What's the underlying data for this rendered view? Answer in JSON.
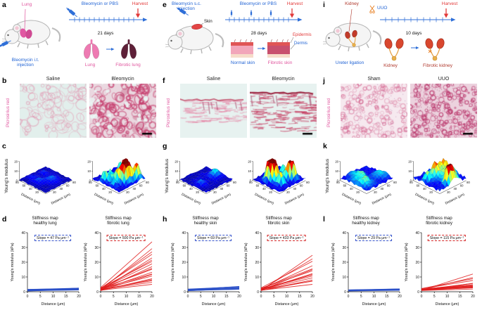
{
  "colors": {
    "accent_blue": "#1f62d4",
    "accent_red": "#e23a3a",
    "accent_magenta": "#e0559e",
    "accent_darkred": "#b03a2e",
    "healthy_line": "#2b50c8",
    "fibrotic_line": "#e01c1c"
  },
  "panels": {
    "a": {
      "letter": "a",
      "organ_pointer": "Lung",
      "injection": "Bleomycin i.t. injection",
      "treatment": "Bleomycin or PBS",
      "duration": "21 days",
      "harvest": "Harvest",
      "organ_before": "Lung",
      "organ_after": "Fibrotic lung"
    },
    "b": {
      "letter": "b",
      "stain": "Picrosirius red",
      "left_title": "Saline",
      "right_title": "Bleomycin"
    },
    "c": {
      "letter": "c",
      "zlabel": "Young's modulus"
    },
    "d": {
      "letter": "d"
    },
    "e": {
      "letter": "e",
      "injection": "Bleomycin s.c. injection",
      "skin_pointer": "Skin",
      "treatment": "Bleomycin or PBS",
      "duration": "28 days",
      "harvest": "Harvest",
      "organ_before": "Normal skin",
      "organ_after": "Fibrotic skin",
      "epidermis": "Epidermis",
      "dermis": "Dermis"
    },
    "f": {
      "letter": "f",
      "stain": "Picrosirius red",
      "left_title": "Saline",
      "right_title": "Bleomycin"
    },
    "g": {
      "letter": "g",
      "zlabel": "Young's modulus"
    },
    "h": {
      "letter": "h"
    },
    "i": {
      "letter": "i",
      "organ_pointer": "Kidney",
      "uuo": "UUO",
      "injection": "Ureter ligation",
      "duration": "10 days",
      "harvest": "Harvest",
      "organ_before": "Kidney",
      "organ_after": "Fibrotic kidney"
    },
    "j": {
      "letter": "j",
      "stain": "Picrosirius red",
      "left_title": "Sham",
      "right_title": "UUO"
    },
    "k": {
      "letter": "k",
      "zlabel": "Young's modulus"
    },
    "l": {
      "letter": "l"
    }
  },
  "histology": {
    "b0": {
      "style": "lung",
      "variant": "healthy",
      "seed": 21
    },
    "b1": {
      "style": "lung",
      "variant": "fibrotic",
      "seed": 22,
      "scalebar": true
    },
    "f0": {
      "style": "skin",
      "variant": "healthy",
      "seed": 23
    },
    "f1": {
      "style": "skin",
      "variant": "fibrotic",
      "seed": 24,
      "scalebar": true
    },
    "j0": {
      "style": "kidney",
      "variant": "healthy",
      "seed": 25
    },
    "j1": {
      "style": "kidney",
      "variant": "fibrotic",
      "seed": 26,
      "scalebar": true
    }
  },
  "chart_data": [
    {
      "id": "c-saline",
      "type": "surface3d",
      "axis_label": "Distance (μm)",
      "ticks": [
        0,
        20,
        40,
        60,
        80
      ],
      "zticks": [
        0,
        10,
        20
      ],
      "zlim": [
        0,
        20
      ],
      "gen": {
        "seed": 11,
        "base": [
          0.2,
          1.6
        ],
        "peaks": 4,
        "amp": [
          1.5,
          4.5
        ],
        "sigma": 1.5
      }
    },
    {
      "id": "c-bleomycin",
      "type": "surface3d",
      "axis_label": "Distance (μm)",
      "ticks": [
        0,
        20,
        40,
        60,
        80
      ],
      "zticks": [
        0,
        10,
        20
      ],
      "zlim": [
        0,
        20
      ],
      "gen": {
        "seed": 12,
        "base": [
          0.5,
          2.8
        ],
        "peaks": 12,
        "amp": [
          7,
          19
        ],
        "sigma": 1.1
      }
    },
    {
      "id": "g-saline",
      "type": "surface3d",
      "axis_label": "Distance (μm)",
      "ticks": [
        0,
        20,
        40,
        60,
        80
      ],
      "zticks": [
        0,
        10,
        20
      ],
      "zlim": [
        0,
        20
      ],
      "gen": {
        "seed": 13,
        "base": [
          0.2,
          1.8
        ],
        "peaks": 4,
        "amp": [
          2,
          5
        ],
        "sigma": 1.5
      }
    },
    {
      "id": "g-bleomycin",
      "type": "surface3d",
      "axis_label": "Distance (μm)",
      "ticks": [
        0,
        20,
        40,
        60,
        80
      ],
      "zticks": [
        0,
        10,
        20
      ],
      "zlim": [
        0,
        20
      ],
      "gen": {
        "seed": 14,
        "base": [
          0.5,
          2.8
        ],
        "peaks": 10,
        "amp": [
          7,
          17
        ],
        "sigma": 1.2
      }
    },
    {
      "id": "k-sham",
      "type": "surface3d",
      "axis_label": "Distance (μm)",
      "ticks": [
        0,
        20,
        40,
        60,
        80
      ],
      "zticks": [
        0,
        10,
        20
      ],
      "zlim": [
        0,
        20
      ],
      "gen": {
        "seed": 15,
        "base": [
          0.8,
          3.6
        ],
        "peaks": 7,
        "amp": [
          2,
          6
        ],
        "sigma": 1.6
      }
    },
    {
      "id": "k-uuo",
      "type": "surface3d",
      "axis_label": "Distance (μm)",
      "ticks": [
        0,
        20,
        40,
        60,
        80
      ],
      "zticks": [
        0,
        10,
        20
      ],
      "zlim": [
        0,
        20
      ],
      "gen": {
        "seed": 16,
        "base": [
          1.0,
          4.2
        ],
        "peaks": 13,
        "amp": [
          4,
          12
        ],
        "sigma": 1.4
      }
    },
    {
      "id": "d-healthy",
      "type": "line",
      "title": "Stiffness map healthy lung",
      "title_lines": [
        "Stiffness map",
        "healthy lung"
      ],
      "slope_label": "Slope = 47 Pa μm⁻¹",
      "slope_pa_per_um": 47,
      "color": "#2b50c8",
      "xlabel": "Distance (μm)",
      "ylabel": "Young's modulus (kPa)",
      "xlim": [
        0,
        20
      ],
      "ylim": [
        0,
        40
      ],
      "xticks": [
        0,
        5,
        10,
        15,
        20
      ],
      "yticks": [
        0,
        10,
        20,
        30,
        40
      ],
      "lines": [
        {
          "b": 0.6,
          "m": 0.03
        },
        {
          "b": 0.9,
          "m": 0.05
        },
        {
          "b": 1.2,
          "m": 0.04
        },
        {
          "b": 0.5,
          "m": 0.06
        },
        {
          "b": 1.5,
          "m": 0.05
        },
        {
          "b": 0.8,
          "m": 0.02
        },
        {
          "b": 1.0,
          "m": 0.07
        },
        {
          "b": 1.4,
          "m": 0.03
        },
        {
          "b": 0.7,
          "m": 0.05
        },
        {
          "b": 1.1,
          "m": 0.06
        },
        {
          "b": 1.3,
          "m": 0.04
        },
        {
          "b": 0.9,
          "m": 0.08
        },
        {
          "b": 0.6,
          "m": 0.05
        },
        {
          "b": 1.6,
          "m": 0.03
        },
        {
          "b": 1.2,
          "m": 0.05
        }
      ]
    },
    {
      "id": "d-fibrotic",
      "type": "line",
      "title": "Stiffness map fibrotic lung",
      "title_lines": [
        "Stiffness map",
        "fibrotic lung"
      ],
      "slope_label": "Slope = 500 Pa μm⁻¹",
      "slope_pa_per_um": 500,
      "color": "#e01c1c",
      "xlabel": "Distance (μm)",
      "ylabel": "Young's modulus (kPa)",
      "xlim": [
        0,
        20
      ],
      "ylim": [
        0,
        40
      ],
      "xticks": [
        0,
        5,
        10,
        15,
        20
      ],
      "yticks": [
        0,
        10,
        20,
        30,
        40
      ],
      "lines": [
        {
          "b": 1.0,
          "m": 0.2
        },
        {
          "b": 1.5,
          "m": 0.3
        },
        {
          "b": 0.8,
          "m": 0.4
        },
        {
          "b": 2.0,
          "m": 0.5
        },
        {
          "b": 1.2,
          "m": 0.6
        },
        {
          "b": 1.8,
          "m": 0.7
        },
        {
          "b": 1.0,
          "m": 0.8
        },
        {
          "b": 2.5,
          "m": 0.9
        },
        {
          "b": 1.5,
          "m": 1.0
        },
        {
          "b": 0.9,
          "m": 1.1
        },
        {
          "b": 2.0,
          "m": 1.25
        },
        {
          "b": 1.2,
          "m": 1.4
        },
        {
          "b": 2.8,
          "m": 1.55
        },
        {
          "b": 1.6,
          "m": 0.45
        },
        {
          "b": 0.7,
          "m": 0.55
        },
        {
          "b": 2.2,
          "m": 0.65
        },
        {
          "b": 1.1,
          "m": 0.35
        },
        {
          "b": 1.9,
          "m": 0.85
        },
        {
          "b": 1.4,
          "m": 0.25
        },
        {
          "b": 2.4,
          "m": 1.15
        }
      ]
    },
    {
      "id": "h-healthy",
      "type": "line",
      "title": "Stiffness map healthy skin",
      "title_lines": [
        "Stiffness map",
        "healthy skin"
      ],
      "slope_label": "Slope = 69 Pa μm⁻¹",
      "slope_pa_per_um": 69,
      "color": "#2b50c8",
      "xlabel": "Distance (μm)",
      "ylabel": "Young's modulus (kPa)",
      "xlim": [
        0,
        20
      ],
      "ylim": [
        0,
        40
      ],
      "xticks": [
        0,
        5,
        10,
        15,
        20
      ],
      "yticks": [
        0,
        10,
        20,
        30,
        40
      ],
      "lines": [
        {
          "b": 0.8,
          "m": 0.04
        },
        {
          "b": 1.1,
          "m": 0.06
        },
        {
          "b": 1.4,
          "m": 0.05
        },
        {
          "b": 0.6,
          "m": 0.08
        },
        {
          "b": 1.7,
          "m": 0.07
        },
        {
          "b": 1.0,
          "m": 0.03
        },
        {
          "b": 1.3,
          "m": 0.09
        },
        {
          "b": 0.9,
          "m": 0.06
        },
        {
          "b": 1.5,
          "m": 0.1
        },
        {
          "b": 1.2,
          "m": 0.05
        },
        {
          "b": 0.7,
          "m": 0.07
        },
        {
          "b": 1.8,
          "m": 0.08
        },
        {
          "b": 1.0,
          "m": 0.06
        },
        {
          "b": 1.4,
          "m": 0.11
        },
        {
          "b": 0.8,
          "m": 0.09
        }
      ]
    },
    {
      "id": "h-fibrotic",
      "type": "line",
      "title": "Stiffness map fibrotic skin",
      "title_lines": [
        "Stiffness map",
        "fibrotic skin"
      ],
      "slope_label": "Slope = 433 Pa μm⁻¹",
      "slope_pa_per_um": 433,
      "color": "#e01c1c",
      "xlabel": "Distance (μm)",
      "ylabel": "Young's modulus (kPa)",
      "xlim": [
        0,
        20
      ],
      "ylim": [
        0,
        40
      ],
      "xticks": [
        0,
        5,
        10,
        15,
        20
      ],
      "yticks": [
        0,
        10,
        20,
        30,
        40
      ],
      "lines": [
        {
          "b": 1.0,
          "m": 0.2
        },
        {
          "b": 1.5,
          "m": 0.28
        },
        {
          "b": 0.8,
          "m": 0.36
        },
        {
          "b": 1.8,
          "m": 0.44
        },
        {
          "b": 1.2,
          "m": 0.52
        },
        {
          "b": 2.2,
          "m": 0.6
        },
        {
          "b": 1.0,
          "m": 0.7
        },
        {
          "b": 1.6,
          "m": 0.8
        },
        {
          "b": 2.6,
          "m": 0.9
        },
        {
          "b": 1.3,
          "m": 1.05
        },
        {
          "b": 0.9,
          "m": 0.32
        },
        {
          "b": 1.9,
          "m": 0.48
        },
        {
          "b": 1.1,
          "m": 0.56
        },
        {
          "b": 2.3,
          "m": 0.66
        },
        {
          "b": 1.4,
          "m": 0.4
        },
        {
          "b": 0.7,
          "m": 1.2
        }
      ]
    },
    {
      "id": "l-healthy",
      "type": "line",
      "title": "Stiffness map healthy kidney",
      "title_lines": [
        "Stiffness map",
        "healthy kidney"
      ],
      "slope_label": "Slope = 29 Pa μm⁻¹",
      "slope_pa_per_um": 29,
      "color": "#2b50c8",
      "xlabel": "Distance (μm)",
      "ylabel": "Young's modulus (kPa)",
      "xlim": [
        0,
        20
      ],
      "ylim": [
        0,
        40
      ],
      "xticks": [
        0,
        5,
        10,
        15,
        20
      ],
      "yticks": [
        0,
        10,
        20,
        30,
        40
      ],
      "lines": [
        {
          "b": 0.5,
          "m": 0.02
        },
        {
          "b": 0.8,
          "m": 0.03
        },
        {
          "b": 1.0,
          "m": 0.02
        },
        {
          "b": 0.6,
          "m": 0.04
        },
        {
          "b": 1.2,
          "m": 0.03
        },
        {
          "b": 0.9,
          "m": 0.01
        },
        {
          "b": 0.7,
          "m": 0.03
        },
        {
          "b": 1.1,
          "m": 0.04
        },
        {
          "b": 0.8,
          "m": 0.02
        },
        {
          "b": 1.3,
          "m": 0.03
        },
        {
          "b": 0.6,
          "m": 0.05
        },
        {
          "b": 1.0,
          "m": 0.03
        },
        {
          "b": 0.9,
          "m": 0.04
        },
        {
          "b": 0.7,
          "m": 0.02
        },
        {
          "b": 1.2,
          "m": 0.02
        }
      ]
    },
    {
      "id": "l-fibrotic",
      "type": "line",
      "title": "Stiffness map fibrotic kidney",
      "title_lines": [
        "Stiffness map",
        "fibrotic kidney"
      ],
      "slope_label": "Slope = 115 Pa μm⁻¹",
      "slope_pa_per_um": 115,
      "color": "#e01c1c",
      "xlabel": "Distance (μm)",
      "ylabel": "Young's modulus (kPa)",
      "xlim": [
        0,
        20
      ],
      "ylim": [
        0,
        40
      ],
      "xticks": [
        0,
        5,
        10,
        15,
        20
      ],
      "yticks": [
        0,
        10,
        20,
        30,
        40
      ],
      "lines": [
        {
          "b": 0.8,
          "m": 0.05
        },
        {
          "b": 1.2,
          "m": 0.07
        },
        {
          "b": 0.9,
          "m": 0.09
        },
        {
          "b": 1.5,
          "m": 0.11
        },
        {
          "b": 1.0,
          "m": 0.13
        },
        {
          "b": 1.8,
          "m": 0.15
        },
        {
          "b": 1.1,
          "m": 0.18
        },
        {
          "b": 1.4,
          "m": 0.21
        },
        {
          "b": 0.9,
          "m": 0.24
        },
        {
          "b": 2.0,
          "m": 0.28
        },
        {
          "b": 1.3,
          "m": 0.1
        },
        {
          "b": 1.6,
          "m": 0.12
        },
        {
          "b": 1.0,
          "m": 0.16
        },
        {
          "b": 2.2,
          "m": 0.33
        },
        {
          "b": 1.2,
          "m": 0.42
        },
        {
          "b": 1.5,
          "m": 0.08
        },
        {
          "b": 1.0,
          "m": 0.55
        }
      ]
    }
  ]
}
